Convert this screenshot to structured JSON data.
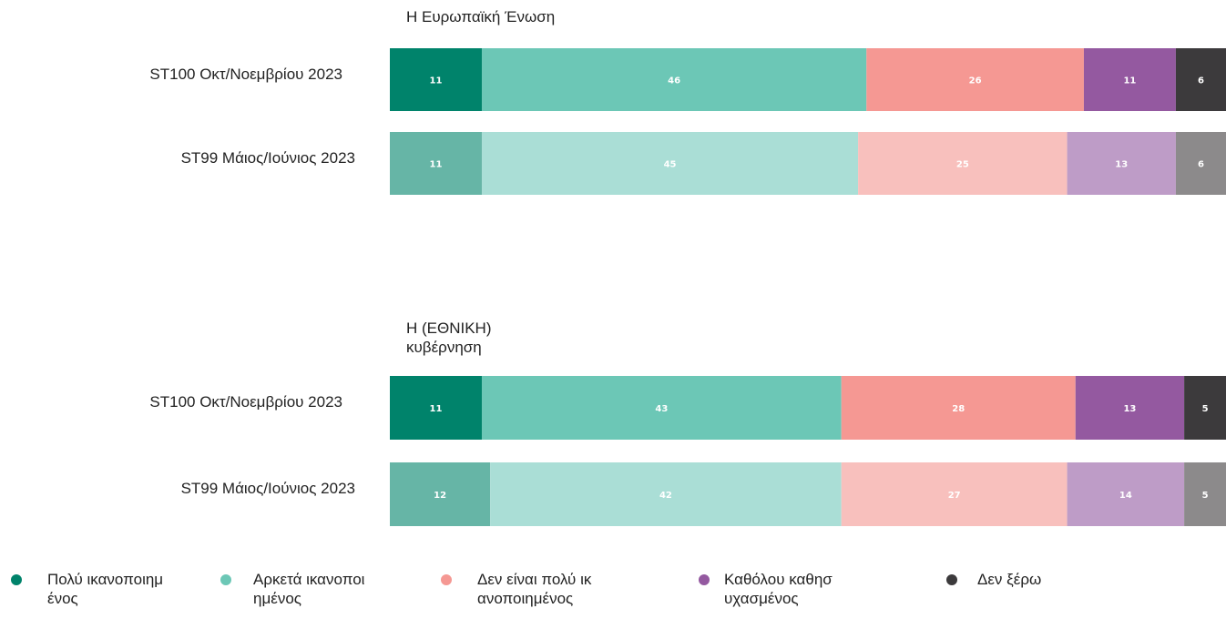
{
  "chart_data": [
    {
      "type": "bar",
      "orientation": "horizontal",
      "stacked": true,
      "title": "Η Ευρωπαϊκή Ένωση",
      "categories": [
        "ST100 Οκτ/Νοεμβρίου 2023",
        "ST99 Μάιος/Ιούνιος 2023"
      ],
      "xlim": [
        0,
        100
      ],
      "series": [
        {
          "name": "Πολύ ικανοποιημένος",
          "colors": [
            "#00836b",
            "#66b5a6"
          ],
          "values": [
            11,
            11
          ]
        },
        {
          "name": "Αρκετά ικανοποιημένος",
          "colors": [
            "#6cc7b6",
            "#aaded6"
          ],
          "values": [
            46,
            45
          ]
        },
        {
          "name": "Δεν είναι πολύ ικανοποιημένος",
          "colors": [
            "#f59893",
            "#f8c0bd"
          ],
          "values": [
            26,
            25
          ]
        },
        {
          "name": "Καθόλου καθησυχασμένος",
          "colors": [
            "#9459a0",
            "#be9cc7"
          ],
          "values": [
            11,
            13
          ]
        },
        {
          "name": "Δεν ξέρω",
          "colors": [
            "#3c3a3c",
            "#8c8a8b"
          ],
          "values": [
            6,
            6
          ]
        }
      ]
    },
    {
      "type": "bar",
      "orientation": "horizontal",
      "stacked": true,
      "title": "Η (ΕΘΝΙΚΗ) κυβέρνηση",
      "categories": [
        "ST100 Οκτ/Νοεμβρίου 2023",
        "ST99 Μάιος/Ιούνιος 2023"
      ],
      "xlim": [
        0,
        100
      ],
      "series": [
        {
          "colors": [
            "#00836b",
            "#66b5a6"
          ],
          "values": [
            11,
            12
          ]
        },
        {
          "colors": [
            "#6cc7b6",
            "#aaded6"
          ],
          "values": [
            43,
            42
          ]
        },
        {
          "colors": [
            "#f59893",
            "#f8c0bd"
          ],
          "values": [
            28,
            27
          ]
        },
        {
          "colors": [
            "#9459a0",
            "#be9cc7"
          ],
          "values": [
            13,
            14
          ]
        },
        {
          "colors": [
            "#3c3a3c",
            "#8c8a8b"
          ],
          "values": [
            5,
            5
          ]
        }
      ]
    }
  ]
}
